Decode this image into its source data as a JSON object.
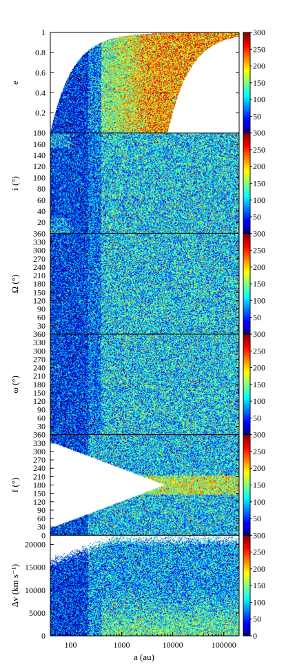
{
  "figure": {
    "xlabel": "a (au)",
    "x_scale": "log",
    "x_range": [
      40,
      200000
    ],
    "x_ticks": [
      100,
      1000,
      10000,
      100000
    ],
    "x_tick_labels": [
      "100",
      "1000",
      "10000",
      "100000"
    ]
  },
  "colorbar": {
    "range": [
      0,
      300
    ],
    "ticks": [
      50,
      100,
      150,
      200,
      250,
      300
    ],
    "ticks_last_panel": [
      0,
      50,
      100,
      150,
      200,
      250,
      300
    ],
    "colormap": "jet",
    "colors": [
      "#00007f",
      "#0000ff",
      "#007fff",
      "#00ffff",
      "#7fff7f",
      "#ffff00",
      "#ff7f00",
      "#ff0000",
      "#7f0000"
    ]
  },
  "chart_data": [
    {
      "type": "heatmap",
      "id": "e",
      "ylabel": "e",
      "ylim": [
        0,
        1
      ],
      "yticks": [
        0.2,
        0.4,
        0.6,
        0.8,
        1
      ],
      "ytick_labels": [
        "0.2",
        "0.4",
        "0.6",
        "0.8",
        "1"
      ],
      "pattern": "eccentricity"
    },
    {
      "type": "heatmap",
      "id": "i",
      "ylabel": "i (°)",
      "ylim": [
        0,
        180
      ],
      "yticks": [
        20,
        40,
        60,
        80,
        100,
        120,
        140,
        160,
        180
      ],
      "ytick_labels": [
        "20",
        "40",
        "60",
        "80",
        "100",
        "120",
        "140",
        "160",
        "180"
      ],
      "pattern": "uniform"
    },
    {
      "type": "heatmap",
      "id": "Omega",
      "ylabel": "Ω (°)",
      "ylim": [
        0,
        360
      ],
      "yticks": [
        30,
        60,
        90,
        120,
        150,
        180,
        210,
        240,
        270,
        300,
        330,
        360
      ],
      "ytick_labels": [
        "30",
        "60",
        "90",
        "120",
        "150",
        "180",
        "210",
        "240",
        "270",
        "300",
        "330",
        "360"
      ],
      "pattern": "uniform"
    },
    {
      "type": "heatmap",
      "id": "omega",
      "ylabel": "ω (°)",
      "ylim": [
        0,
        360
      ],
      "yticks": [
        30,
        60,
        90,
        120,
        150,
        180,
        210,
        240,
        270,
        300,
        330,
        360
      ],
      "ytick_labels": [
        "30",
        "60",
        "90",
        "120",
        "150",
        "180",
        "210",
        "240",
        "270",
        "300",
        "330",
        "360"
      ],
      "pattern": "uniform"
    },
    {
      "type": "heatmap",
      "id": "f",
      "ylabel": "f (°)",
      "ylim": [
        0,
        360
      ],
      "yticks": [
        0,
        30,
        60,
        90,
        120,
        150,
        180,
        210,
        240,
        270,
        300,
        330,
        360
      ],
      "ytick_labels": [
        "0",
        "30",
        "60",
        "90",
        "120",
        "150",
        "180",
        "210",
        "240",
        "270",
        "300",
        "330",
        "360"
      ],
      "pattern": "true_anomaly"
    },
    {
      "type": "heatmap",
      "id": "dv",
      "ylabel": "Δv (km s⁻¹)",
      "ylim": [
        0,
        22000
      ],
      "yticks": [
        0,
        5000,
        10000,
        15000,
        20000
      ],
      "ytick_labels": [
        "0",
        "5000",
        "10000",
        "15000",
        "20000"
      ],
      "pattern": "delta_v"
    }
  ]
}
